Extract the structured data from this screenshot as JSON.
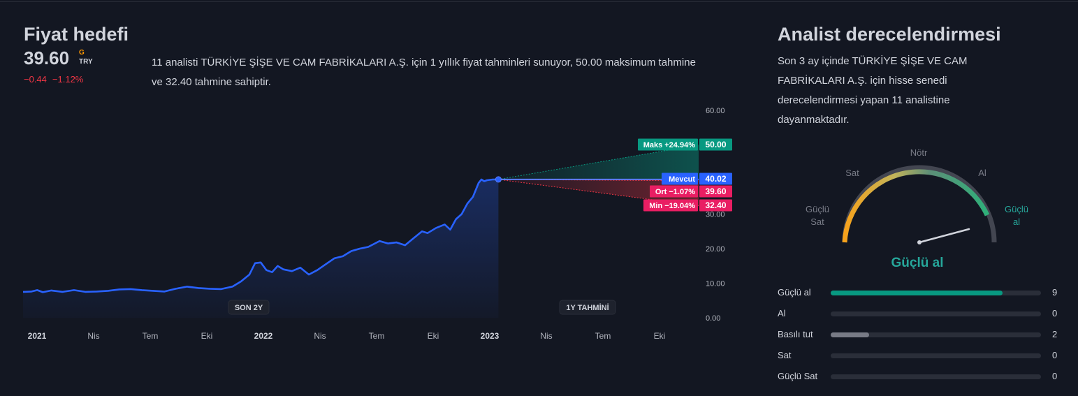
{
  "left": {
    "title": "Fiyat hedefi",
    "price": "39.60",
    "currency_flag": "G",
    "currency": "TRY",
    "change": "−0.44",
    "change_pct": "−1.12%",
    "description": "11 analisti TÜRKİYE ŞİŞE VE CAM FABRİKALARI A.Ş. için 1 yıllık fiyat tahminleri sunuyor, 50.00 maksimum tahmine ve 32.40 tahmine sahiptir."
  },
  "chart_data": {
    "type": "line",
    "ylim": [
      0,
      60
    ],
    "y_ticks": [
      "60.00",
      "30.00",
      "20.00",
      "10.00",
      "0.00"
    ],
    "x_ticks": [
      "2021",
      "Nis",
      "Tem",
      "Eki",
      "2022",
      "Nis",
      "Tem",
      "Eki",
      "2023",
      "Nis",
      "Tem",
      "Eki"
    ],
    "series_points": [
      [
        0,
        7.5
      ],
      [
        0.15,
        7.6
      ],
      [
        0.25,
        8.0
      ],
      [
        0.35,
        7.4
      ],
      [
        0.5,
        7.9
      ],
      [
        0.7,
        7.5
      ],
      [
        0.9,
        8.0
      ],
      [
        1.1,
        7.5
      ],
      [
        1.3,
        7.6
      ],
      [
        1.5,
        7.8
      ],
      [
        1.7,
        8.2
      ],
      [
        1.9,
        8.3
      ],
      [
        2.1,
        8.0
      ],
      [
        2.3,
        7.8
      ],
      [
        2.5,
        7.6
      ],
      [
        2.7,
        8.4
      ],
      [
        2.9,
        9.0
      ],
      [
        3.1,
        8.6
      ],
      [
        3.3,
        8.4
      ],
      [
        3.5,
        8.3
      ],
      [
        3.7,
        9.0
      ],
      [
        3.85,
        10.5
      ],
      [
        4.0,
        12.5
      ],
      [
        4.1,
        15.8
      ],
      [
        4.2,
        16.0
      ],
      [
        4.3,
        13.8
      ],
      [
        4.4,
        13.2
      ],
      [
        4.5,
        15.0
      ],
      [
        4.6,
        14.0
      ],
      [
        4.75,
        13.5
      ],
      [
        4.9,
        14.5
      ],
      [
        5.05,
        12.5
      ],
      [
        5.2,
        13.8
      ],
      [
        5.35,
        15.5
      ],
      [
        5.5,
        17.2
      ],
      [
        5.65,
        17.8
      ],
      [
        5.8,
        19.3
      ],
      [
        5.95,
        20.0
      ],
      [
        6.1,
        20.5
      ],
      [
        6.3,
        22.2
      ],
      [
        6.45,
        21.5
      ],
      [
        6.6,
        21.8
      ],
      [
        6.75,
        21.0
      ],
      [
        6.9,
        23.0
      ],
      [
        7.05,
        25.0
      ],
      [
        7.15,
        24.5
      ],
      [
        7.3,
        26.0
      ],
      [
        7.45,
        27.0
      ],
      [
        7.55,
        25.5
      ],
      [
        7.65,
        28.5
      ],
      [
        7.75,
        30.0
      ],
      [
        7.85,
        33.0
      ],
      [
        7.95,
        35.0
      ],
      [
        8.05,
        39.0
      ],
      [
        8.1,
        40.0
      ],
      [
        8.15,
        39.5
      ],
      [
        8.2,
        39.8
      ],
      [
        8.3,
        40.0
      ],
      [
        8.4,
        40.02
      ]
    ],
    "labels": {
      "past": "SON 2Y",
      "forecast": "1Y TAHMİNİ"
    },
    "targets": {
      "max": {
        "label": "Maks +24.94%",
        "value": "50.00",
        "y": 50.0
      },
      "current": {
        "label": "Mevcut",
        "value": "40.02",
        "y": 40.02
      },
      "avg": {
        "label": "Ort −1.07%",
        "value": "39.60",
        "y": 39.6
      },
      "min": {
        "label": "Min −19.04%",
        "value": "32.40",
        "y": 32.4
      }
    }
  },
  "right": {
    "title": "Analist derecelendirmesi",
    "description": "Son 3 ay içinde TÜRKİYE ŞİŞE VE CAM FABRİKALARI A.Ş. için hisse senedi derecelendirmesi yapan 11 analistine dayanmaktadır.",
    "gauge": {
      "neutral": "Nötr",
      "sell": "Sat",
      "buy": "Al",
      "strong_sell_1": "Güçlü",
      "strong_sell_2": "Sat",
      "strong_buy_1": "Güçlü",
      "strong_buy_2": "al",
      "result": "Güçlü al"
    },
    "ratings": [
      {
        "label": "Güçlü al",
        "count": "9",
        "value": 9,
        "color": "#089981"
      },
      {
        "label": "Al",
        "count": "0",
        "value": 0,
        "color": "#089981"
      },
      {
        "label": "Basılı tut",
        "count": "2",
        "value": 2,
        "color": "#787b86"
      },
      {
        "label": "Sat",
        "count": "0",
        "value": 0,
        "color": "#f23645"
      },
      {
        "label": "Güçlü Sat",
        "count": "0",
        "value": 0,
        "color": "#f23645"
      }
    ],
    "total": 11,
    "colors": {
      "accent_green": "#26a69a",
      "bar_green": "#089981"
    }
  }
}
